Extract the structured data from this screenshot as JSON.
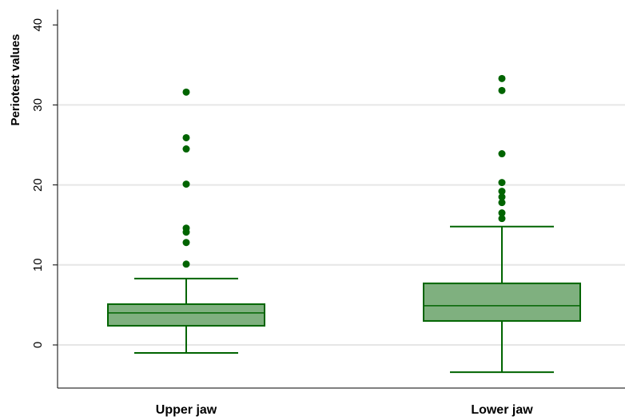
{
  "chart_data": {
    "type": "box",
    "title": "",
    "xlabel": "",
    "ylabel": "Periotest values",
    "ylim": [
      -5,
      40
    ],
    "yticks": [
      0,
      10,
      20,
      30,
      40
    ],
    "grid": true,
    "categories": [
      "Upper jaw",
      "Lower jaw"
    ],
    "boxes": [
      {
        "category": "Upper jaw",
        "whisker_low": -1,
        "q1": 2.4,
        "median": 4,
        "q3": 5.1,
        "whisker_high": 8.3,
        "outliers": [
          10.1,
          12.8,
          14.1,
          14.6,
          20.1,
          24.5,
          25.9,
          31.6
        ]
      },
      {
        "category": "Lower jaw",
        "whisker_low": -3.4,
        "q1": 3,
        "median": 4.9,
        "q3": 7.7,
        "whisker_high": 14.8,
        "outliers": [
          15.8,
          16.5,
          17.8,
          18.5,
          19.2,
          20.3,
          23.9,
          31.8,
          33.3
        ]
      }
    ],
    "colors": {
      "box_fill": "#7fb07f",
      "box_stroke": "#006400",
      "outlier": "#006400",
      "grid": "#e6e6e6",
      "axis": "#000000"
    }
  }
}
